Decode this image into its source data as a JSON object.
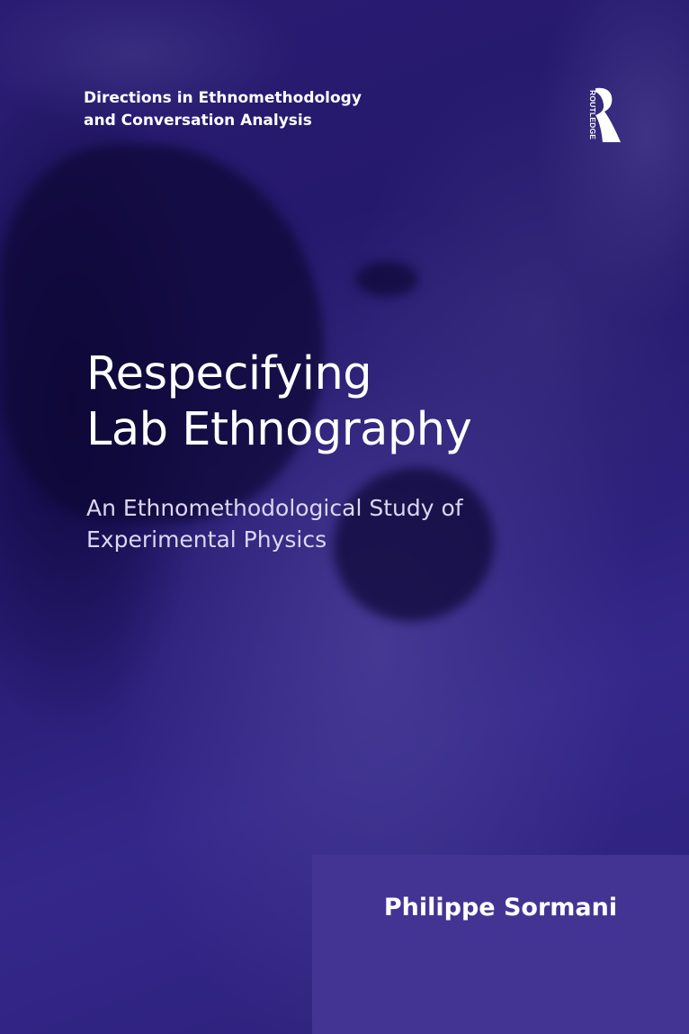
{
  "series": [
    "Directions in Ethnomethodology",
    "and Conversation Analysis"
  ],
  "publisher_logo": {
    "name": "ROUTLEDGE",
    "icon": "routledge-logo-icon"
  },
  "title": [
    "Respecifying",
    "Lab Ethnography"
  ],
  "subtitle": [
    "An Ethnomethodological Study of",
    "Experimental Physics"
  ],
  "author": "Philippe Sormani",
  "colors": {
    "background": "#2a1c72",
    "author_box": "#433494",
    "text": "#ffffff"
  }
}
